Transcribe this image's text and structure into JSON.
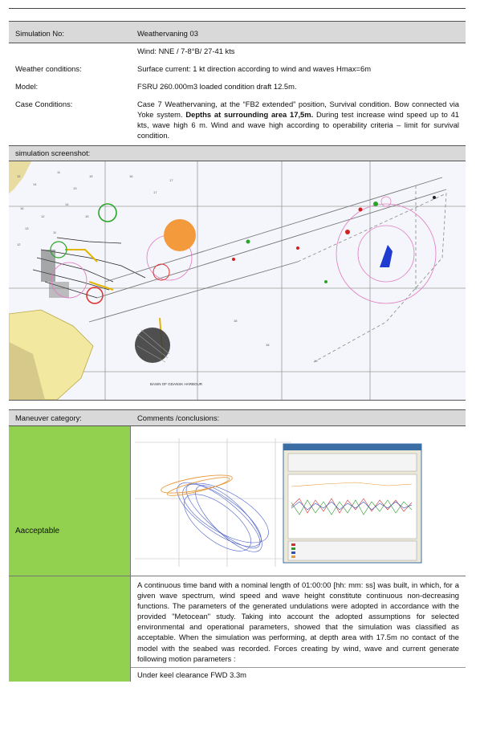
{
  "simulation": {
    "label": "Simulation No:",
    "value": "Weathervaning 03"
  },
  "wind": "Wind: NNE / 7-8°B/ 27-41 kts",
  "weather": {
    "label": "Weather conditions:",
    "value": "Surface current:  1 kt direction according to wind and waves   Hmax=6m"
  },
  "model": {
    "label": "Model:",
    "value": "FSRU 260.000m3 loaded condition draft 12.5m."
  },
  "case": {
    "label": "Case Conditions:",
    "text1": "Case 7 Weathervaning, at the “FB2 extended” position, Survival condition. Bow connected via Yoke system. ",
    "bold": "Depths at surrounding area 17,5m.",
    "text2": " During test increase wind speed up to 41 kts, wave high 6 m. Wind and wave high according to operability criteria – limit for survival condition."
  },
  "screenshot_label": "simulation screenshot:",
  "map_labels": {
    "harbour": "BASIN OF GDANSK HARBOUR"
  },
  "maneuver": {
    "header_label": "Maneuver category:",
    "header_comments": "Comments /conclusions:",
    "category": "Aacceptable"
  },
  "conclusion": "A continuous time band with a nominal length of 01:00:00 [hh: mm: ss] was built, in which, for a given wave spectrum, wind speed and wave height constitute continuous non-decreasing functions. The parameters of the generated undulations were adopted in accordance with the provided \"Metocean\" study. Taking into account the adopted assumptions for selected environmental and operational parameters, showed that the simulation was classified as acceptable. When the simulation was performing, at depth area with 17.5m no contact of the model with the seabed was recorded. Forces creating by wind, wave and current generate following motion parameters :",
  "ukc": "Under keel clearance FWD 3.3m",
  "colors": {
    "header_gray": "#d9d9d9",
    "accept_green": "#92d050"
  }
}
